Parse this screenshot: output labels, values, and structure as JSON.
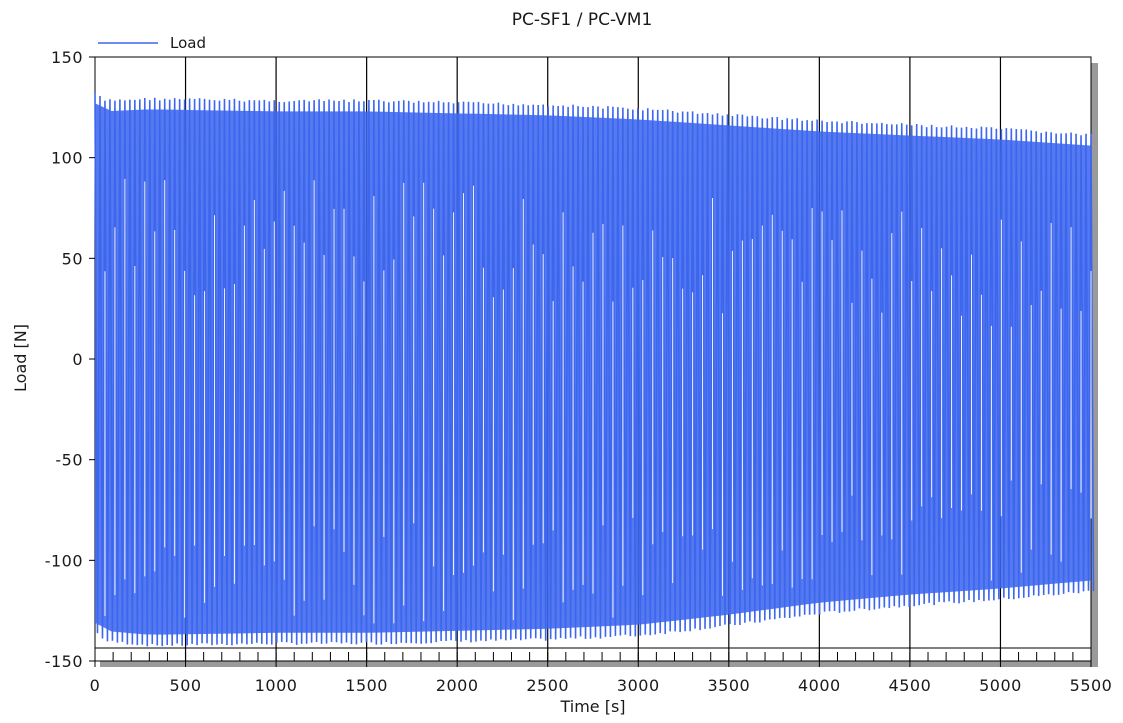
{
  "chart_data": {
    "type": "line",
    "title": "PC-SF1 / PC-VM1",
    "xlabel": "Time [s]",
    "ylabel": "Load [N]",
    "xlim": [
      0,
      5500
    ],
    "ylim": [
      -150,
      150
    ],
    "x_ticks": [
      "0",
      "500",
      "1000",
      "1500",
      "2000",
      "2500",
      "3000",
      "3500",
      "4000",
      "4500",
      "5000",
      "5500"
    ],
    "y_ticks": [
      "150",
      "100",
      "50",
      "0",
      "-50",
      "-100",
      "-150"
    ],
    "grid": "vertical",
    "legend_position": "top-left",
    "series": [
      {
        "name": "Load",
        "color": "#3d67ee",
        "cycle_period_s": 27.5,
        "envelope": {
          "x": [
            0,
            50,
            300,
            1000,
            1500,
            2000,
            2500,
            3000,
            3500,
            4000,
            4500,
            5000,
            5500
          ],
          "max": [
            133,
            129,
            130,
            129,
            129,
            128,
            127,
            125,
            122,
            119,
            117,
            115,
            112
          ],
          "min": [
            -137,
            -141,
            -143,
            -142,
            -142,
            -141,
            -140,
            -138,
            -133,
            -127,
            -123,
            -120,
            -116
          ]
        }
      }
    ]
  }
}
